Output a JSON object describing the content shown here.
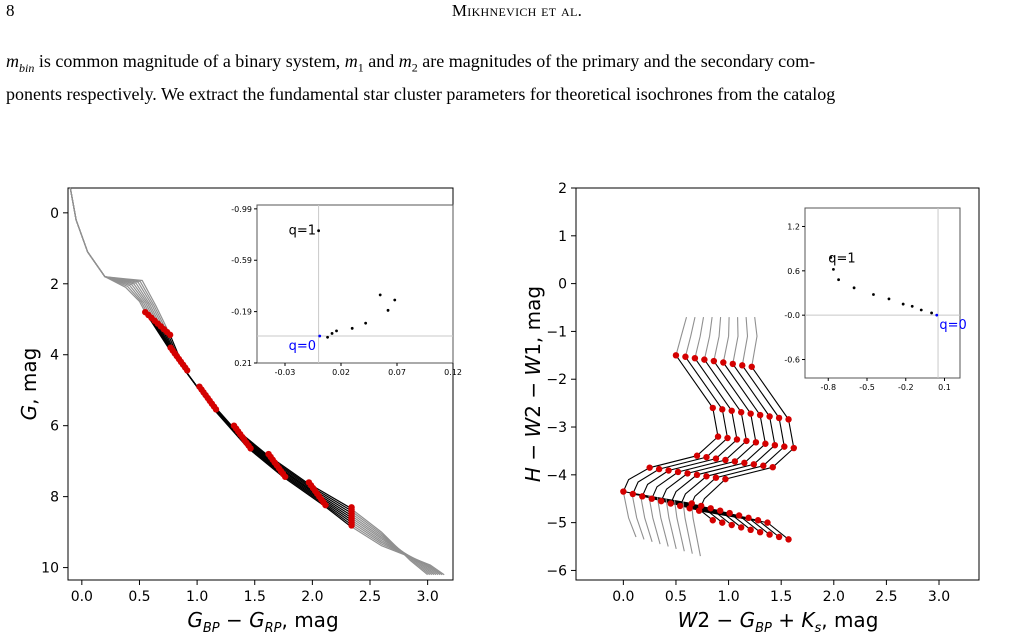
{
  "header": {
    "page_number": "8",
    "running_title": "Mikhnevich et al."
  },
  "body": {
    "line1_sym": "m",
    "line1_sub": "bin",
    "line1_rest": " is common magnitude of a binary system, ",
    "m1_sym": "m",
    "m1_sub": "1",
    "and_text": " and ",
    "m2_sym": "m",
    "m2_sub": "2",
    "line1_tail": " are magnitudes of the primary and the secondary com-",
    "line2": "ponents respectively. We extract the fundamental star cluster parameters for theoretical isochrones from the catalog"
  },
  "colors": {
    "marker": "#d40000",
    "isochrone": "#000000",
    "extension": "#909090",
    "q0_label": "#0000ff",
    "inset_line": "#c8c8c8"
  },
  "chart_data": [
    {
      "type": "line",
      "title": "",
      "xlabel": "G_BP − G_RP, mag",
      "ylabel": "G, mag",
      "xlim": [
        -0.12,
        3.22
      ],
      "ylim": [
        10.35,
        -0.7
      ],
      "y_inverted": true,
      "xticks": [
        "0.0",
        "0.5",
        "1.0",
        "1.5",
        "2.0",
        "2.5",
        "3.0"
      ],
      "yticks": [
        "0",
        "2",
        "4",
        "6",
        "8",
        "10"
      ],
      "series_count": 9,
      "series": [
        {
          "color": "#000000",
          "segment": "isochrone",
          "x_range": [
            0.55,
            2.32
          ],
          "y_range": [
            2.5,
            8.3
          ]
        },
        {
          "color": "#909090",
          "segment": "extension",
          "x_range": [
            -0.1,
            3.0
          ],
          "y_range": [
            -0.7,
            10.2
          ]
        }
      ],
      "marker_color": "#d40000",
      "inset": {
        "type": "scatter",
        "xticks": [
          "-0.03",
          "0.02",
          "0.07",
          "0.12"
        ],
        "yticks": [
          "-0.99",
          "-0.59",
          "-0.19",
          "0.21"
        ],
        "xlim": [
          -0.055,
          0.12
        ],
        "ylim": [
          0.21,
          -1.02
        ],
        "annotations": [
          {
            "text": "q=1",
            "color": "#000000"
          },
          {
            "text": "q=0",
            "color": "#0000ff"
          }
        ],
        "x": [
          0.0,
          0.008,
          0.012,
          0.016,
          0.03,
          0.042,
          0.055,
          0.062,
          0.068,
          0.001
        ],
        "y": [
          -0.82,
          0.01,
          -0.02,
          -0.04,
          -0.06,
          -0.1,
          -0.32,
          -0.2,
          -0.28,
          0.0
        ]
      }
    },
    {
      "type": "line",
      "title": "",
      "xlabel": "W2 − G_BP + K_s, mag",
      "ylabel": "H − W2 − W1, mag",
      "xlim": [
        -0.45,
        3.38
      ],
      "ylim": [
        -6.2,
        2.0
      ],
      "xticks": [
        "0.0",
        "0.5",
        "1.0",
        "1.5",
        "2.0",
        "2.5",
        "3.0"
      ],
      "yticks": [
        "2",
        "1",
        "0",
        "−1",
        "−2",
        "−3",
        "−4",
        "−5",
        "−6"
      ],
      "series_count": 9,
      "marker_color": "#d40000",
      "inset": {
        "type": "scatter",
        "xticks": [
          "-0.8",
          "-0.5",
          "-0.2",
          "0.1"
        ],
        "yticks": [
          "1.2",
          "0.6",
          "-0.0",
          "-0.6"
        ],
        "xlim": [
          -0.98,
          0.22
        ],
        "ylim": [
          -0.85,
          1.45
        ],
        "annotations": [
          {
            "text": "q=1",
            "color": "#000000"
          },
          {
            "text": "q=0",
            "color": "#0000ff"
          }
        ],
        "x": [
          -0.78,
          -0.76,
          -0.72,
          -0.6,
          -0.45,
          -0.33,
          -0.22,
          -0.15,
          -0.08,
          0.0,
          0.04
        ],
        "y": [
          0.78,
          0.62,
          0.48,
          0.37,
          0.28,
          0.22,
          0.15,
          0.12,
          0.07,
          0.03,
          0.0
        ]
      }
    }
  ]
}
